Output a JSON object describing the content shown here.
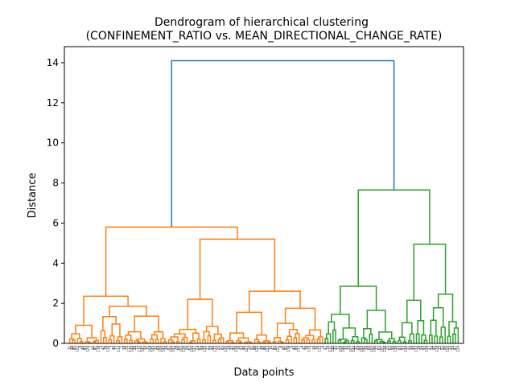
{
  "chart_data": {
    "type": "dendrogram",
    "title": "Dendrogram of hierarchical clustering",
    "subtitle": "(CONFINEMENT_RATIO vs. MEAN_DIRECTIONAL_CHANGE_RATE)",
    "xlabel": "Data points",
    "ylabel": "Distance",
    "ylim": [
      0,
      14.8
    ],
    "yticks": [
      0,
      2,
      4,
      6,
      8,
      10,
      12,
      14
    ],
    "n_leaves": 150,
    "colors": {
      "root": "#1f77b4",
      "cluster_1": "#ff7f0e",
      "cluster_2": "#2ca02c"
    },
    "merges": [
      {
        "name": "root",
        "height": 14.1,
        "color": "#1f77b4",
        "children": [
          "orange_cluster",
          "green_cluster"
        ]
      },
      {
        "name": "orange_cluster",
        "height": 5.8,
        "color": "#ff7f0e",
        "children": [
          "orange_a",
          "orange_b"
        ]
      },
      {
        "name": "orange_a",
        "height": 2.35,
        "color": "#ff7f0e",
        "children": [
          "oa1",
          "oa2"
        ]
      },
      {
        "name": "oa1",
        "height": 0.9,
        "color": "#ff7f0e"
      },
      {
        "name": "oa2",
        "height": 1.85,
        "color": "#ff7f0e"
      },
      {
        "name": "orange_b",
        "height": 5.2,
        "color": "#ff7f0e",
        "children": [
          "orange_b1",
          "orange_b2"
        ]
      },
      {
        "name": "orange_b1",
        "height": 2.2,
        "color": "#ff7f0e"
      },
      {
        "name": "orange_b2",
        "height": 2.6,
        "color": "#ff7f0e",
        "children": [
          "ob2a",
          "ob2b"
        ]
      },
      {
        "name": "ob2a",
        "height": 1.55,
        "color": "#ff7f0e"
      },
      {
        "name": "ob2b",
        "height": 1.75,
        "color": "#ff7f0e"
      },
      {
        "name": "green_cluster",
        "height": 7.65,
        "color": "#2ca02c",
        "children": [
          "green_a",
          "green_b"
        ]
      },
      {
        "name": "green_a",
        "height": 2.85,
        "color": "#2ca02c",
        "children": [
          "ga1",
          "ga2"
        ]
      },
      {
        "name": "ga1",
        "height": 1.45,
        "color": "#2ca02c"
      },
      {
        "name": "ga2",
        "height": 1.65,
        "color": "#2ca02c"
      },
      {
        "name": "green_b",
        "height": 4.95,
        "color": "#2ca02c",
        "children": [
          "gb1",
          "gb2"
        ]
      },
      {
        "name": "gb1",
        "height": 2.15,
        "color": "#2ca02c"
      },
      {
        "name": "gb2",
        "height": 2.45,
        "color": "#2ca02c"
      }
    ]
  }
}
